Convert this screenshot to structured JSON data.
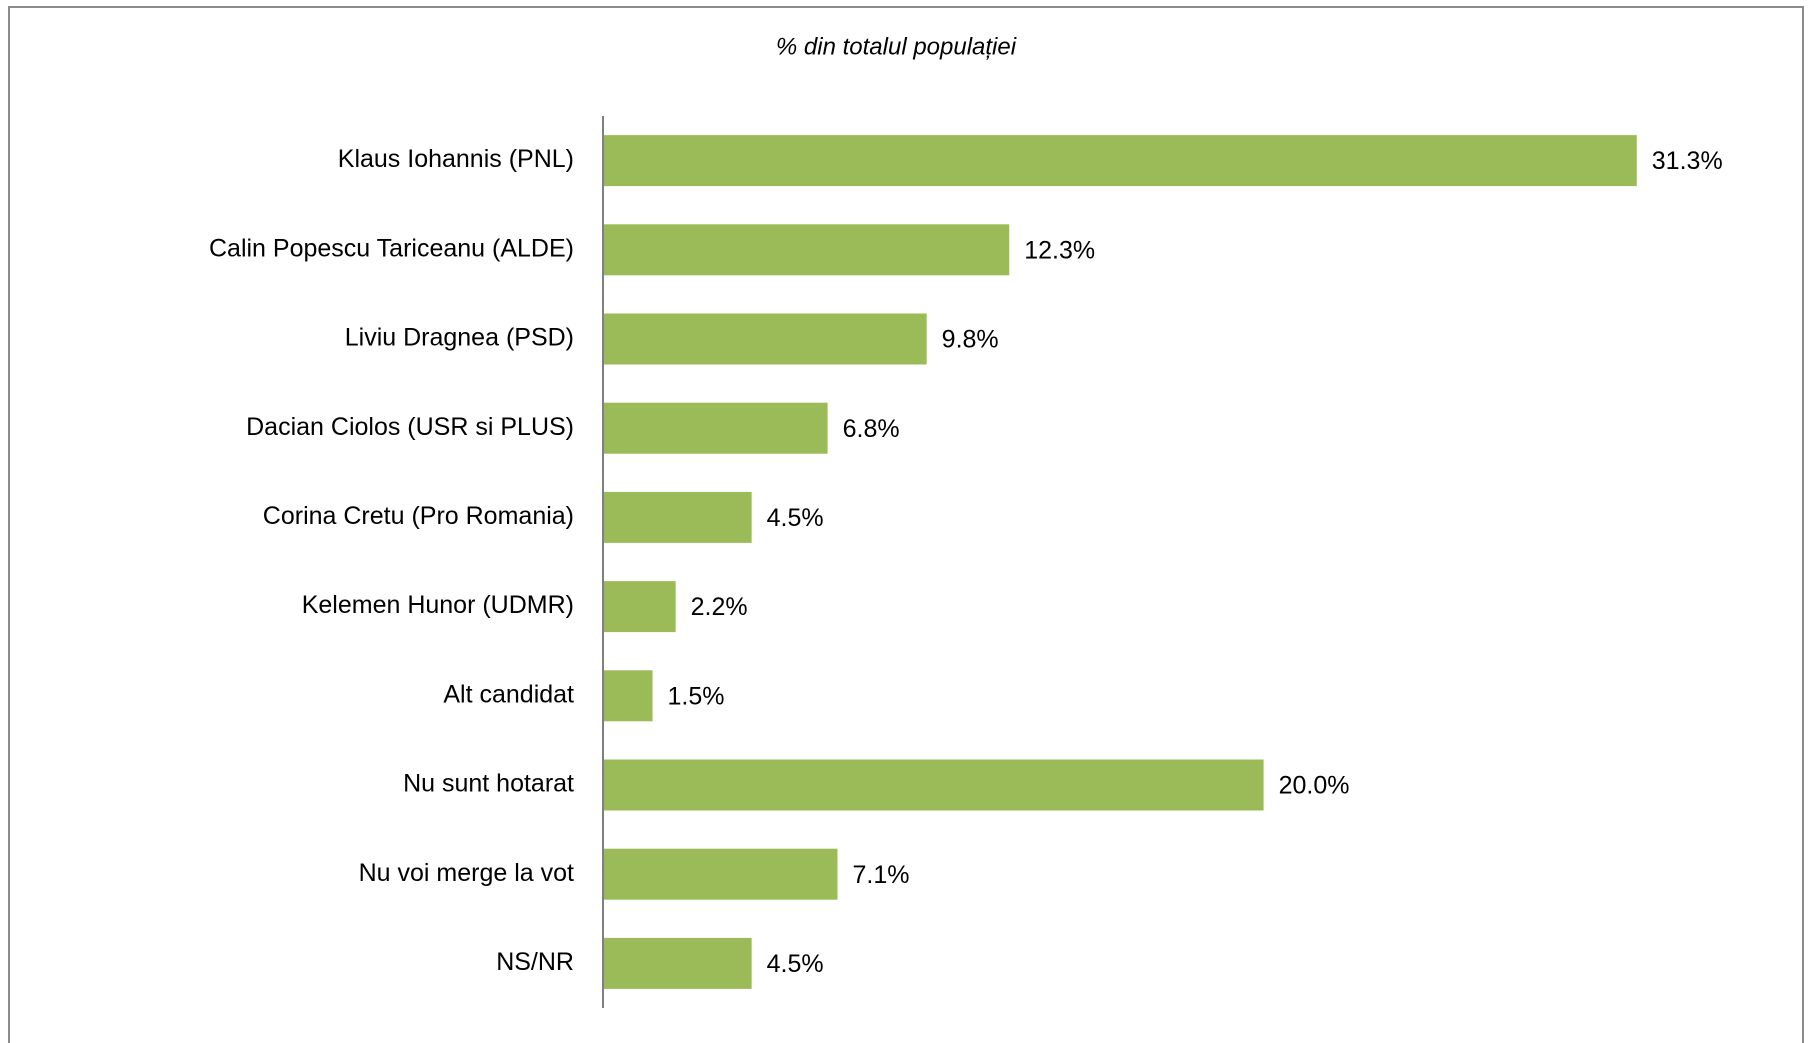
{
  "chart_data": {
    "type": "hbar",
    "title": "% din totalul populației",
    "categories": [
      "Klaus Iohannis (PNL)",
      "Calin Popescu Tariceanu (ALDE)",
      "Liviu Dragnea (PSD)",
      "Dacian Ciolos (USR si PLUS)",
      "Corina Cretu (Pro Romania)",
      "Kelemen Hunor (UDMR)",
      "Alt candidat",
      "Nu sunt hotarat",
      "Nu voi merge la vot",
      "NS/NR"
    ],
    "values": [
      31.3,
      12.3,
      9.8,
      6.8,
      4.5,
      2.2,
      1.5,
      20.0,
      7.1,
      4.5
    ],
    "value_labels": [
      "31.3%",
      "12.3%",
      "9.8%",
      "6.8%",
      "4.5%",
      "2.2%",
      "1.5%",
      "20.0%",
      "7.1%",
      "4.5%"
    ],
    "color": "#9bbb59",
    "xlim": [
      0,
      35
    ]
  }
}
